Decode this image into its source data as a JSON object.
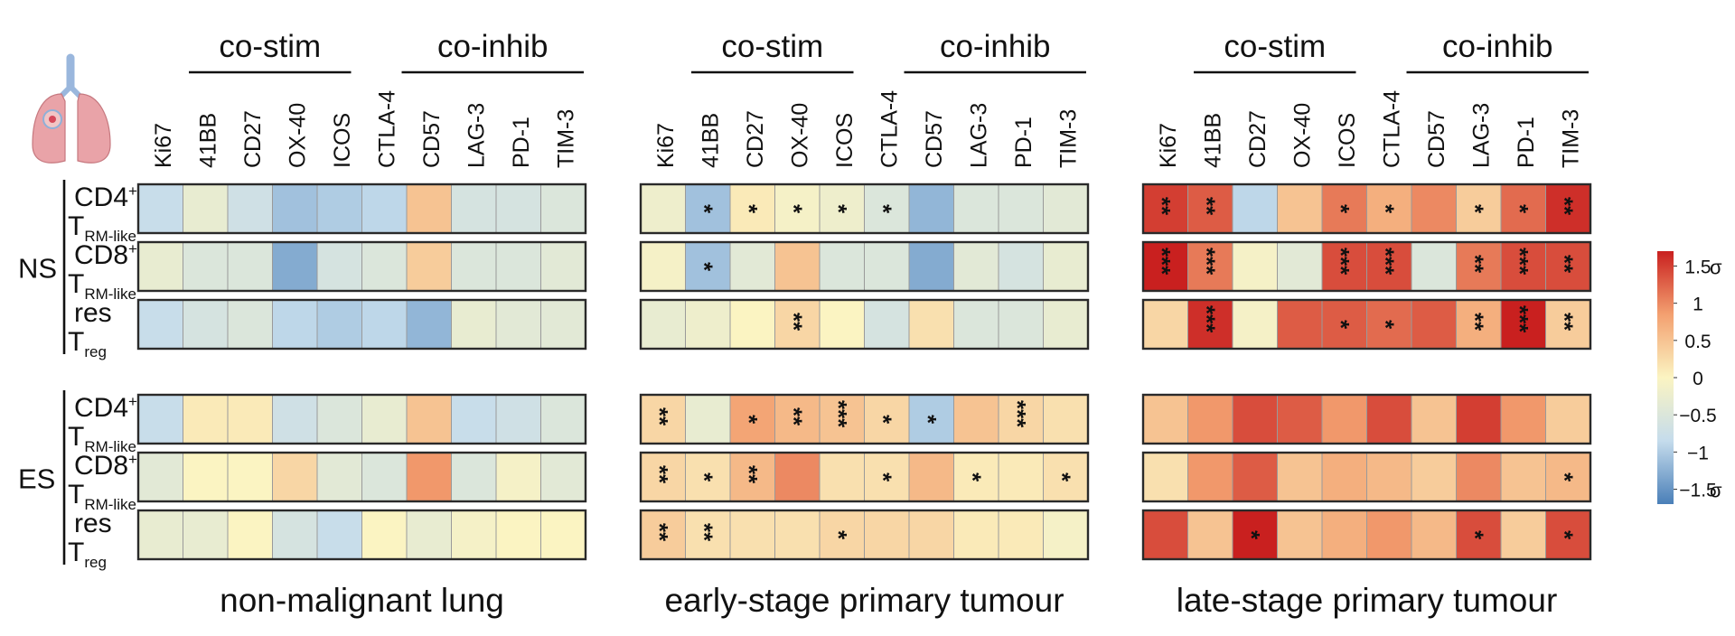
{
  "chart_data": {
    "type": "heatmap",
    "panels": [
      {
        "title": "non-malignant lung",
        "groups": [
          {
            "label": "co-stim",
            "span": [
              0,
              4
            ]
          },
          {
            "label": "co-inhib",
            "span": [
              5,
              9
            ]
          }
        ]
      },
      {
        "title": "early-stage primary tumour",
        "groups": [
          {
            "label": "co-stim",
            "span": [
              0,
              4
            ]
          },
          {
            "label": "co-inhib",
            "span": [
              5,
              9
            ]
          }
        ]
      },
      {
        "title": "late-stage primary tumour",
        "groups": [
          {
            "label": "co-stim",
            "span": [
              0,
              4
            ]
          },
          {
            "label": "co-inhib",
            "span": [
              5,
              9
            ]
          }
        ]
      }
    ],
    "columns": [
      "Ki67",
      "41BB",
      "CD27",
      "OX-40",
      "ICOS",
      "CTLA-4",
      "CD57",
      "LAG-3",
      "PD-1",
      "TIM-3"
    ],
    "blocks": [
      {
        "label": "NS",
        "rows": [
          {
            "main": "CD4",
            "sup": "+",
            "sub_prefix": "T",
            "sub": "RM-like"
          },
          {
            "main": "CD8",
            "sup": "+",
            "sub_prefix": "T",
            "sub": "RM-like"
          },
          {
            "main": "res",
            "sup": "",
            "sub_prefix": "T",
            "sub": "reg"
          }
        ]
      },
      {
        "label": "ES",
        "rows": [
          {
            "main": "CD4",
            "sup": "+",
            "sub_prefix": "T",
            "sub": "RM-like"
          },
          {
            "main": "CD8",
            "sup": "+",
            "sub_prefix": "T",
            "sub": "RM-like"
          },
          {
            "main": "res",
            "sup": "",
            "sub_prefix": "T",
            "sub": "reg"
          }
        ]
      }
    ],
    "values": [
      [
        [
          -0.8,
          -0.3,
          -0.7,
          -1.1,
          -1.0,
          -0.9,
          0.5,
          -0.6,
          -0.6,
          -0.5
        ],
        [
          -0.3,
          -0.5,
          -0.5,
          -1.3,
          -0.6,
          -0.5,
          0.4,
          -0.5,
          -0.5,
          -0.4
        ],
        [
          -0.8,
          -0.6,
          -0.5,
          -0.9,
          -1.0,
          -0.9,
          -1.2,
          -0.3,
          -0.4,
          -0.4
        ]
      ],
      [
        [
          -0.2,
          -1.1,
          0.1,
          -0.1,
          -0.2,
          -0.5,
          -1.2,
          -0.5,
          -0.5,
          -0.4
        ],
        [
          -0.1,
          -1.1,
          -0.4,
          0.5,
          -0.5,
          -0.5,
          -1.3,
          -0.4,
          -0.6,
          -0.3
        ],
        [
          -0.3,
          -0.2,
          0.0,
          0.3,
          0.0,
          -0.6,
          0.2,
          -0.5,
          -0.5,
          -0.3
        ]
      ],
      [
        [
          1.5,
          1.3,
          -0.9,
          0.5,
          1.1,
          0.7,
          1.0,
          0.4,
          1.2,
          1.6
        ],
        [
          1.7,
          1.1,
          -0.1,
          -0.4,
          1.4,
          1.4,
          -0.5,
          1.1,
          1.4,
          1.4
        ],
        [
          0.3,
          1.6,
          -0.1,
          1.3,
          1.3,
          1.2,
          1.3,
          0.7,
          1.7,
          0.4
        ]
      ],
      [
        [
          -0.8,
          0.1,
          0.1,
          -0.7,
          -0.5,
          -0.3,
          0.5,
          -0.8,
          -0.7,
          -0.5
        ],
        [
          -0.4,
          0.0,
          0.0,
          0.3,
          -0.4,
          -0.5,
          0.9,
          -0.5,
          -0.1,
          -0.4
        ],
        [
          -0.3,
          -0.3,
          0.0,
          -0.6,
          -0.8,
          0.0,
          -0.3,
          -0.1,
          0.0,
          0.0
        ]
      ],
      [
        [
          0.3,
          -0.3,
          0.8,
          0.6,
          0.5,
          0.3,
          -1.0,
          0.5,
          0.3,
          0.2
        ],
        [
          0.3,
          0.2,
          0.6,
          1.0,
          0.2,
          0.2,
          0.6,
          0.1,
          0.1,
          0.2
        ],
        [
          0.4,
          0.2,
          0.2,
          0.2,
          0.3,
          0.3,
          0.3,
          0.1,
          0.1,
          -0.1
        ]
      ],
      [
        [
          0.5,
          0.9,
          1.4,
          1.3,
          0.9,
          1.4,
          0.5,
          1.5,
          0.9,
          0.4
        ],
        [
          0.2,
          0.9,
          1.3,
          0.5,
          0.7,
          0.6,
          0.4,
          1.0,
          0.5,
          0.6
        ],
        [
          1.4,
          0.5,
          1.7,
          0.5,
          0.7,
          0.9,
          0.6,
          1.4,
          0.4,
          1.4
        ]
      ]
    ],
    "stars": [
      [
        [
          "",
          "",
          "",
          "",
          "",
          "",
          "",
          "",
          "",
          ""
        ],
        [
          "",
          "",
          "",
          "",
          "",
          "",
          "",
          "",
          "",
          ""
        ],
        [
          "",
          "",
          "",
          "",
          "",
          "",
          "",
          "",
          "",
          ""
        ]
      ],
      [
        [
          "",
          "*",
          "*",
          "*",
          "*",
          "*",
          "",
          "",
          "",
          ""
        ],
        [
          "",
          "*",
          "",
          "",
          "",
          "",
          "",
          "",
          "",
          ""
        ],
        [
          "",
          "",
          "",
          "**",
          "",
          "",
          "",
          "",
          "",
          ""
        ]
      ],
      [
        [
          "**",
          "**",
          "",
          "",
          "*",
          "*",
          "",
          "*",
          "*",
          "**"
        ],
        [
          "***",
          "***",
          "",
          "",
          "***",
          "***",
          "",
          "**",
          "***",
          "**"
        ],
        [
          "",
          "***",
          "",
          "",
          "*",
          "*",
          "",
          "**",
          "***",
          "**"
        ]
      ],
      [
        [
          "",
          "",
          "",
          "",
          "",
          "",
          "",
          "",
          "",
          ""
        ],
        [
          "",
          "",
          "",
          "",
          "",
          "",
          "",
          "",
          "",
          ""
        ],
        [
          "",
          "",
          "",
          "",
          "",
          "",
          "",
          "",
          "",
          ""
        ]
      ],
      [
        [
          "**",
          "",
          "*",
          "**",
          "***",
          "*",
          "*",
          "",
          "***",
          ""
        ],
        [
          "**",
          "*",
          "**",
          "",
          "",
          "*",
          "",
          "*",
          "",
          "*"
        ],
        [
          "**",
          "**",
          "",
          "",
          "*",
          "",
          "",
          "",
          "",
          ""
        ]
      ],
      [
        [
          "",
          "",
          "",
          "",
          "",
          "",
          "",
          "",
          "",
          ""
        ],
        [
          "",
          "",
          "",
          "",
          "",
          "",
          "",
          "",
          "",
          "*"
        ],
        [
          "",
          "",
          "*",
          "",
          "",
          "",
          "",
          "*",
          "",
          "*"
        ]
      ]
    ],
    "colorbar": {
      "range": [
        -1.7,
        1.7
      ],
      "ticks": [
        {
          "value": 1.5,
          "label": "1.5"
        },
        {
          "value": 1,
          "label": "1"
        },
        {
          "value": 0.5,
          "label": "0.5"
        },
        {
          "value": 0,
          "label": "0"
        },
        {
          "value": -0.5,
          "label": "−0.5"
        },
        {
          "value": -1,
          "label": "−1"
        },
        {
          "value": -1.5,
          "label": "−1.5"
        }
      ],
      "unit": "σ",
      "colors": [
        "#4a7fb8",
        "#c5dcec",
        "#fbf4c2",
        "#f3a070",
        "#c9201f"
      ]
    },
    "colors": {
      "cell_border": "#9a9a9a",
      "panel_border": "#2a2a2a",
      "icon_lung": "#e9a3a8",
      "icon_trachea": "#9ab7dd"
    }
  }
}
